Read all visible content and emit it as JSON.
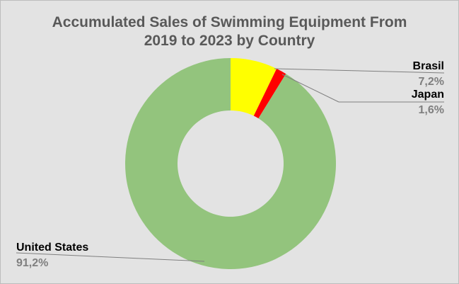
{
  "chart_data": {
    "type": "pie",
    "variant": "doughnut",
    "title_line1": "Accumulated Sales of Swimming Equipment From",
    "title_line2": "2019 to 2023 by Country",
    "slices": [
      {
        "label": "Brasil",
        "value": 7.2,
        "value_label": "7,2%",
        "color": "#ffff00"
      },
      {
        "label": "Japan",
        "value": 1.6,
        "value_label": "1,6%",
        "color": "#ff0000"
      },
      {
        "label": "United States",
        "value": 91.2,
        "value_label": "91,2%",
        "color": "#93c47d"
      }
    ],
    "start_angle_deg": 0,
    "direction": "clockwise",
    "legend": "none",
    "labels": "outside with leader lines"
  }
}
